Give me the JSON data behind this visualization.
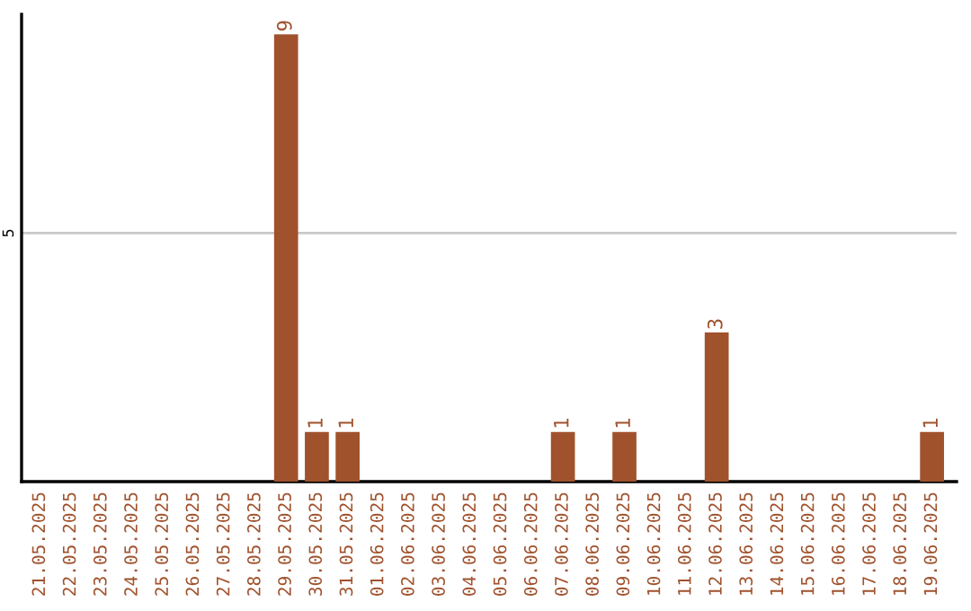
{
  "chart_data": {
    "type": "bar",
    "categories": [
      "21.05.2025",
      "22.05.2025",
      "23.05.2025",
      "24.05.2025",
      "25.05.2025",
      "26.05.2025",
      "27.05.2025",
      "28.05.2025",
      "29.05.2025",
      "30.05.2025",
      "31.05.2025",
      "01.06.2025",
      "02.06.2025",
      "03.06.2025",
      "04.06.2025",
      "05.06.2025",
      "06.06.2025",
      "07.06.2025",
      "08.06.2025",
      "09.06.2025",
      "10.06.2025",
      "11.06.2025",
      "12.06.2025",
      "13.06.2025",
      "14.06.2025",
      "15.06.2025",
      "16.06.2025",
      "17.06.2025",
      "18.06.2025",
      "19.06.2025"
    ],
    "values": [
      0,
      0,
      0,
      0,
      0,
      0,
      0,
      0,
      9,
      1,
      1,
      0,
      0,
      0,
      0,
      0,
      0,
      1,
      0,
      1,
      0,
      0,
      3,
      0,
      0,
      0,
      0,
      0,
      0,
      1
    ],
    "value_labels": [
      null,
      null,
      null,
      null,
      null,
      null,
      null,
      null,
      "9",
      "1",
      "1",
      null,
      null,
      null,
      null,
      null,
      null,
      "1",
      null,
      "1",
      null,
      null,
      "3",
      null,
      null,
      null,
      null,
      null,
      null,
      "1"
    ],
    "color": "#a0522d",
    "ylim": [
      0,
      9.4
    ],
    "yticks": [
      5
    ],
    "grid": "y",
    "legend": false
  }
}
